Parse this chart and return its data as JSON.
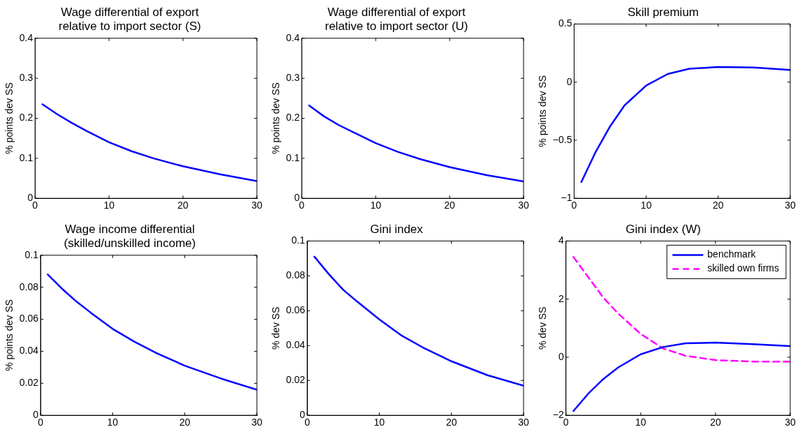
{
  "chart_data": [
    {
      "type": "line",
      "title": "Wage differential of export\nrelative to import sector (S)",
      "ylabel": "% points dev SS",
      "xlim": [
        0,
        30
      ],
      "xticks": [
        0,
        10,
        20,
        30
      ],
      "ylim": [
        0,
        0.4
      ],
      "yticks": [
        0,
        0.1,
        0.2,
        0.3,
        0.4
      ],
      "x": [
        1,
        3,
        5,
        7,
        10,
        13,
        16,
        20,
        25,
        30
      ],
      "grid": false,
      "legend": false,
      "series": [
        {
          "color": "#0000ff",
          "values": [
            0.235,
            0.21,
            0.188,
            0.168,
            0.14,
            0.118,
            0.1,
            0.08,
            0.06,
            0.043
          ]
        }
      ]
    },
    {
      "type": "line",
      "title": "Wage differential of export\nrelative to import sector (U)",
      "ylabel": "% points dev SS",
      "xlim": [
        0,
        30
      ],
      "xticks": [
        0,
        10,
        20,
        30
      ],
      "ylim": [
        0,
        0.4
      ],
      "yticks": [
        0,
        0.1,
        0.2,
        0.3,
        0.4
      ],
      "x": [
        1,
        3,
        5,
        7,
        10,
        13,
        16,
        20,
        25,
        30
      ],
      "grid": false,
      "legend": false,
      "series": [
        {
          "color": "#0000ff",
          "values": [
            0.232,
            0.205,
            0.183,
            0.165,
            0.138,
            0.116,
            0.098,
            0.078,
            0.058,
            0.042
          ]
        }
      ]
    },
    {
      "type": "line",
      "title": "Skill premium",
      "ylabel": "% points dev SS",
      "xlim": [
        0,
        30
      ],
      "xticks": [
        0,
        10,
        20,
        30
      ],
      "ylim": [
        -1,
        0.5
      ],
      "yticks": [
        {
          "value": -1,
          "label": "−1"
        },
        {
          "value": -0.5,
          "label": "−0.5"
        },
        0,
        0.5
      ],
      "x": [
        1,
        3,
        5,
        7,
        10,
        13,
        16,
        20,
        25,
        30
      ],
      "grid": false,
      "legend": false,
      "series": [
        {
          "color": "#0000ff",
          "values": [
            -0.86,
            -0.6,
            -0.38,
            -0.2,
            -0.03,
            0.07,
            0.115,
            0.13,
            0.125,
            0.105
          ]
        }
      ]
    },
    {
      "type": "line",
      "title": "Wage income differential\n(skilled/unskilled income)",
      "ylabel": "% points dev SS",
      "xlim": [
        0,
        30
      ],
      "xticks": [
        0,
        10,
        20,
        30
      ],
      "ylim": [
        0,
        0.1
      ],
      "yticks": [
        0,
        0.02,
        0.04,
        0.06,
        0.08,
        0.1
      ],
      "x": [
        1,
        3,
        5,
        7,
        10,
        13,
        16,
        20,
        25,
        30
      ],
      "grid": false,
      "legend": false,
      "series": [
        {
          "color": "#0000ff",
          "values": [
            0.088,
            0.079,
            0.071,
            0.064,
            0.054,
            0.046,
            0.039,
            0.031,
            0.023,
            0.016
          ]
        }
      ]
    },
    {
      "type": "line",
      "title": "Gini index",
      "ylabel": "% dev SS",
      "xlim": [
        0,
        30
      ],
      "xticks": [
        0,
        10,
        20,
        30
      ],
      "ylim": [
        0,
        0.1
      ],
      "yticks": [
        0,
        0.02,
        0.04,
        0.06,
        0.08,
        0.1
      ],
      "x": [
        1,
        3,
        5,
        7,
        10,
        13,
        16,
        20,
        25,
        30
      ],
      "grid": false,
      "legend": false,
      "series": [
        {
          "color": "#0000ff",
          "values": [
            0.091,
            0.081,
            0.072,
            0.065,
            0.055,
            0.046,
            0.039,
            0.031,
            0.023,
            0.017
          ]
        }
      ]
    },
    {
      "type": "line",
      "title": "Gini index (W)",
      "ylabel": "% dev SS",
      "xlim": [
        0,
        30
      ],
      "xticks": [
        0,
        10,
        20,
        30
      ],
      "ylim": [
        -2,
        4
      ],
      "yticks": [
        {
          "value": -2,
          "label": "−2"
        },
        0,
        2,
        4
      ],
      "x": [
        1,
        3,
        5,
        7,
        10,
        13,
        16,
        20,
        25,
        30
      ],
      "grid": false,
      "legend": "top right",
      "series": [
        {
          "name": "benchmark",
          "color": "#0000ff",
          "line_style": "solid",
          "values": [
            -1.85,
            -1.25,
            -0.75,
            -0.35,
            0.1,
            0.35,
            0.48,
            0.5,
            0.45,
            0.38
          ]
        },
        {
          "name": "skilled own firms",
          "color": "#ff00ff",
          "line_style": "dashed",
          "values": [
            3.45,
            2.75,
            2.05,
            1.5,
            0.8,
            0.3,
            0.05,
            -0.1,
            -0.15,
            -0.15
          ]
        }
      ]
    }
  ]
}
